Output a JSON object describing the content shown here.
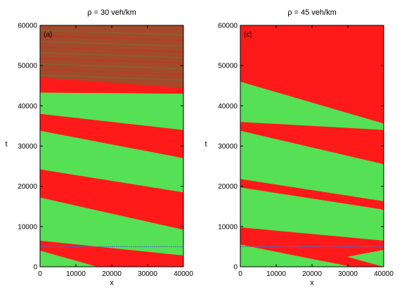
{
  "chart_data": [
    {
      "type": "heatmap",
      "panel_label": "(a)",
      "title": "ρ = 30 veh/km",
      "xlabel": "x",
      "ylabel": "t",
      "xlim": [
        0,
        40000
      ],
      "ylim": [
        0,
        60000
      ],
      "xticks": [
        "0",
        "10000",
        "20000",
        "30000",
        "40000"
      ],
      "yticks": [
        "0",
        "10000",
        "20000",
        "30000",
        "40000",
        "50000",
        "60000"
      ],
      "colors": {
        "high": "#ff1a1a",
        "low": "#55e055",
        "mixed": "#a24a2a",
        "marker_line": "#4a6ad0"
      },
      "background_state": "red",
      "green_bands": [
        {
          "x0": 0,
          "t_bottom_at_x0": 38000,
          "t_top_at_x0": 43300,
          "x1": 40000,
          "t_bottom_at_x1": 34000,
          "t_top_at_x1": 43000
        },
        {
          "x0": 0,
          "t_bottom_at_x0": 24200,
          "t_top_at_x0": 33800,
          "x1": 40000,
          "t_bottom_at_x1": 18500,
          "t_top_at_x1": 27000
        },
        {
          "x0": 0,
          "t_bottom_at_x0": 6500,
          "t_top_at_x0": 17200,
          "x1": 40000,
          "t_bottom_at_x1": 2800,
          "t_top_at_x1": 9200
        }
      ],
      "extra_red_band": {
        "x0": 0,
        "t_bottom_at_x0": 4000,
        "t_top_at_x0": 5700,
        "x_end": 16000,
        "t_end": 0
      },
      "mixed_region": {
        "t_from_at_x0": 47000,
        "t_from_at_x1": 44500,
        "t_to": 60000
      },
      "marker_line_t": 5000
    },
    {
      "type": "heatmap",
      "panel_label": "(c)",
      "title": "ρ = 45 veh/km",
      "xlabel": "x",
      "ylabel": "t",
      "xlim": [
        0,
        40000
      ],
      "ylim": [
        0,
        60000
      ],
      "xticks": [
        "0",
        "10000",
        "20000",
        "30000",
        "40000"
      ],
      "yticks": [
        "0",
        "10000",
        "20000",
        "30000",
        "40000",
        "50000",
        "60000"
      ],
      "colors": {
        "high": "#ff1a1a",
        "low": "#55e055",
        "marker_line": "#4a6ad0"
      },
      "background_state": "red",
      "green_bands": [
        {
          "x0": 0,
          "t_bottom_at_x0": 36000,
          "t_top_at_x0": 46000,
          "x1": 40000,
          "t_bottom_at_x1": 34000,
          "t_top_at_x1": 35600
        },
        {
          "x0": 0,
          "t_bottom_at_x0": 21800,
          "t_top_at_x0": 33800,
          "x1": 40000,
          "t_bottom_at_x1": 16300,
          "t_top_at_x1": 25500
        },
        {
          "x0": 0,
          "t_bottom_at_x0": 9800,
          "t_top_at_x0": 19700,
          "x1": 40000,
          "t_bottom_at_x1": 6500,
          "t_top_at_x1": 14200
        }
      ],
      "extra_green_band": {
        "x_start": 15000,
        "t_start": 0,
        "x_end": 40000,
        "t_end": 4200,
        "t_top_at_x1": 4200
      },
      "extra_red_band": {
        "x0": 0,
        "t_bottom_at_x0": 5500,
        "t_top_at_x0": 9800,
        "x_end": 31000,
        "t_end": 0
      },
      "marker_line_t": 5000
    }
  ]
}
